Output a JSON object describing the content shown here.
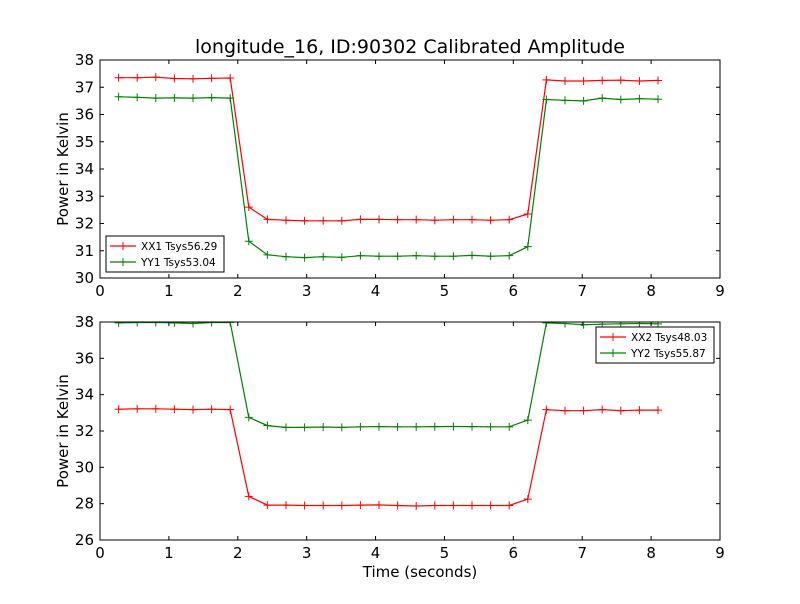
{
  "title": "longitude_16, ID:90302 Calibrated Amplitude",
  "colors": {
    "xx": "#ff0000",
    "yy": "#008000",
    "axis": "#000000",
    "background": "#ffffff"
  },
  "chart_data": [
    {
      "type": "line",
      "title": "longitude_16, ID:90302 Calibrated Amplitude",
      "xlabel": "",
      "ylabel": "Power in Kelvin",
      "xlim": [
        0,
        9
      ],
      "ylim": [
        30,
        38
      ],
      "xticks": [
        0,
        1,
        2,
        3,
        4,
        5,
        6,
        7,
        8,
        9
      ],
      "yticks": [
        30,
        31,
        32,
        33,
        34,
        35,
        36,
        37,
        38
      ],
      "grid": false,
      "legend_position": "lower-left",
      "x": [
        0.27,
        0.54,
        0.81,
        1.08,
        1.35,
        1.62,
        1.89,
        2.16,
        2.43,
        2.7,
        2.97,
        3.24,
        3.51,
        3.78,
        4.05,
        4.32,
        4.59,
        4.86,
        5.13,
        5.4,
        5.67,
        5.94,
        6.21,
        6.48,
        6.75,
        7.02,
        7.29,
        7.56,
        7.83,
        8.1
      ],
      "series": [
        {
          "name": "XX1 Tsys56.29",
          "color": "#ff0000",
          "values": [
            37.35,
            37.35,
            37.37,
            37.32,
            37.31,
            37.33,
            37.34,
            32.6,
            32.15,
            32.12,
            32.1,
            32.1,
            32.1,
            32.15,
            32.15,
            32.14,
            32.14,
            32.12,
            32.14,
            32.14,
            32.12,
            32.14,
            32.35,
            37.27,
            37.23,
            37.23,
            37.25,
            37.26,
            37.23,
            37.25
          ]
        },
        {
          "name": "YY1 Tsys53.04",
          "color": "#008000",
          "values": [
            36.65,
            36.63,
            36.6,
            36.61,
            36.6,
            36.62,
            36.6,
            31.35,
            30.85,
            30.78,
            30.75,
            30.78,
            30.76,
            30.82,
            30.8,
            30.8,
            30.82,
            30.8,
            30.8,
            30.83,
            30.8,
            30.82,
            31.15,
            36.55,
            36.52,
            36.5,
            36.6,
            36.55,
            36.58,
            36.56
          ]
        }
      ]
    },
    {
      "type": "line",
      "title": "",
      "xlabel": "Time (seconds)",
      "ylabel": "Power in Kelvin",
      "xlim": [
        0,
        9
      ],
      "ylim": [
        26,
        38
      ],
      "xticks": [
        0,
        1,
        2,
        3,
        4,
        5,
        6,
        7,
        8,
        9
      ],
      "yticks": [
        26,
        28,
        30,
        32,
        34,
        36,
        38
      ],
      "grid": false,
      "legend_position": "top-right",
      "x": [
        0.27,
        0.54,
        0.81,
        1.08,
        1.35,
        1.62,
        1.89,
        2.16,
        2.43,
        2.7,
        2.97,
        3.24,
        3.51,
        3.78,
        4.05,
        4.32,
        4.59,
        4.86,
        5.13,
        5.4,
        5.67,
        5.94,
        6.21,
        6.48,
        6.75,
        7.02,
        7.29,
        7.56,
        7.83,
        8.1
      ],
      "series": [
        {
          "name": "XX2 Tsys48.03",
          "color": "#ff0000",
          "values": [
            33.2,
            33.22,
            33.22,
            33.2,
            33.18,
            33.2,
            33.18,
            28.4,
            27.92,
            27.92,
            27.9,
            27.9,
            27.9,
            27.92,
            27.93,
            27.9,
            27.87,
            27.9,
            27.9,
            27.9,
            27.9,
            27.9,
            28.25,
            33.18,
            33.12,
            33.12,
            33.18,
            33.12,
            33.15,
            33.15
          ]
        },
        {
          "name": "YY2 Tsys55.87",
          "color": "#008000",
          "values": [
            37.95,
            37.97,
            37.98,
            37.95,
            37.92,
            37.97,
            37.98,
            32.75,
            32.3,
            32.2,
            32.2,
            32.22,
            32.2,
            32.23,
            32.24,
            32.23,
            32.23,
            32.24,
            32.25,
            32.24,
            32.23,
            32.23,
            32.6,
            37.95,
            37.92,
            37.85,
            37.88,
            37.9,
            37.92,
            37.9
          ]
        }
      ]
    }
  ]
}
